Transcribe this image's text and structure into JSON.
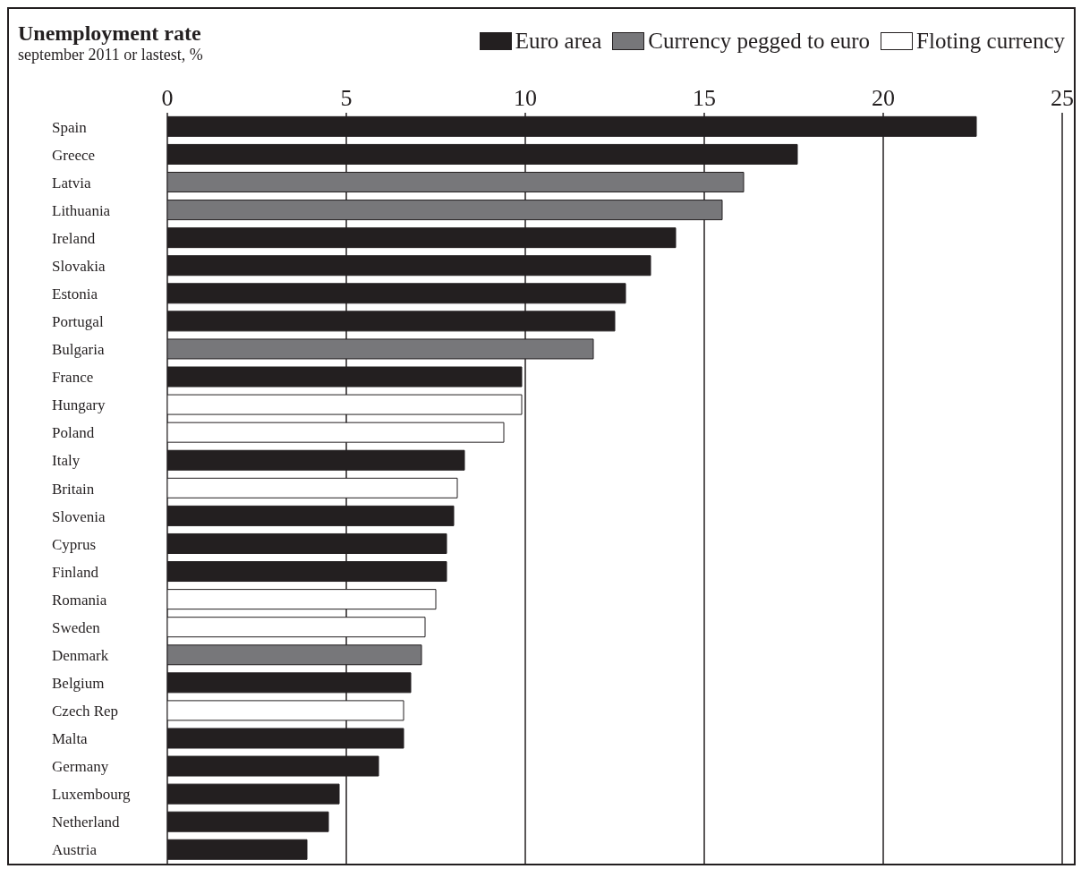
{
  "chart_data": {
    "type": "bar",
    "orientation": "horizontal",
    "stacked": true,
    "title": "Unemployment rate",
    "subtitle": "september 2011 or lastest, %",
    "categories": [
      "Spain",
      "Greece",
      "Latvia",
      "Lithuania",
      "Ireland",
      "Slovakia",
      "Estonia",
      "Portugal",
      "Bulgaria",
      "France",
      "Hungary",
      "Poland",
      "Italy",
      "Britain",
      "Slovenia",
      "Cyprus",
      "Finland",
      "Romania",
      "Sweden",
      "Denmark",
      "Belgium",
      "Czech Rep",
      "Malta",
      "Germany",
      "Luxembourg",
      "Netherland",
      "Austria"
    ],
    "series": [
      {
        "name": "Euro area",
        "color": "#231f20",
        "values": [
          22.6,
          17.6,
          null,
          null,
          14.2,
          13.5,
          12.8,
          12.5,
          null,
          9.9,
          null,
          null,
          8.3,
          null,
          8.0,
          7.8,
          7.8,
          null,
          null,
          null,
          6.8,
          null,
          6.6,
          5.9,
          4.8,
          4.5,
          3.9
        ]
      },
      {
        "name": "Currency pegged to euro",
        "color": "#77777a",
        "values": [
          null,
          null,
          16.1,
          15.5,
          null,
          null,
          null,
          null,
          11.9,
          null,
          null,
          null,
          null,
          null,
          null,
          null,
          null,
          null,
          null,
          7.1,
          null,
          null,
          null,
          null,
          null,
          null,
          null
        ]
      },
      {
        "name": "Floting currency",
        "color": "#ffffff",
        "values": [
          null,
          null,
          null,
          null,
          null,
          null,
          null,
          null,
          null,
          null,
          9.9,
          9.4,
          null,
          8.1,
          null,
          null,
          null,
          7.5,
          7.2,
          null,
          null,
          6.6,
          null,
          null,
          null,
          null,
          null
        ]
      }
    ],
    "xlim": [
      0,
      25
    ],
    "xticks": [
      0,
      5,
      10,
      15,
      20,
      25
    ],
    "grid": "x",
    "legend": "top right"
  }
}
